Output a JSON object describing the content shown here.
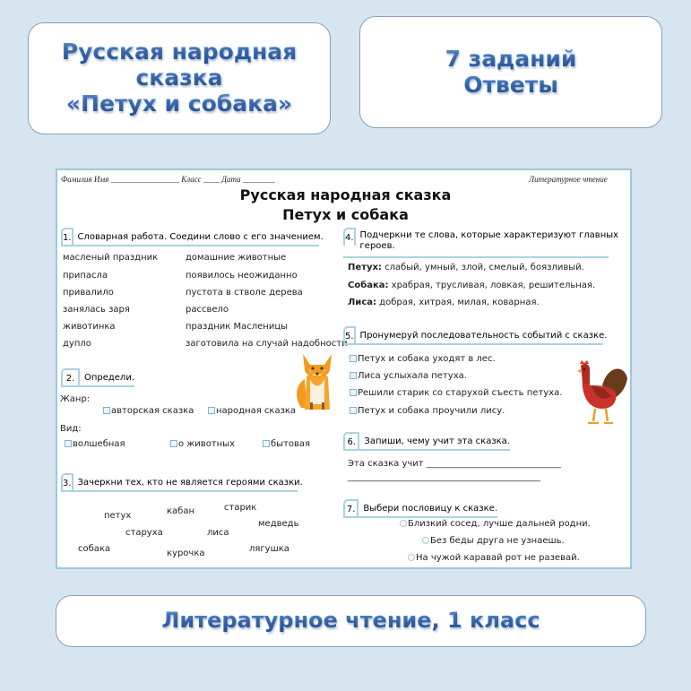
{
  "banner_title": [
    "Русская народная",
    "сказка",
    "«Петух и собака»"
  ],
  "banner_info": [
    "7 заданий",
    "Ответы"
  ],
  "footer": "Литературное чтение, 1 класс",
  "sheet": {
    "header_left": "Фамилия Имя _________________  Класс ____  Дата ________",
    "header_right": "Литературное чтение",
    "title": "Русская народная сказка",
    "subtitle": "Петух и собака",
    "task1": {
      "num": "1.",
      "text": "Словарная работа. Соедини слово с его значением.",
      "left": [
        "масленый праздник",
        "припасла",
        "привалило",
        "занялась заря",
        "животинка",
        "дупло"
      ],
      "right": [
        "домашние животные",
        "появилось неожиданно",
        "пустота в стволе дерева",
        "рассвело",
        "праздник Масленицы",
        "заготовила на случай надобности"
      ]
    },
    "task2": {
      "num": "2.",
      "text": "Определи.",
      "genre_label": "Жанр:",
      "genre": [
        "авторская сказка",
        "народная сказка"
      ],
      "kind_label": "Вид:",
      "kind": [
        "волшебная",
        "о животных",
        "бытовая"
      ]
    },
    "task3": {
      "num": "3.",
      "text": "Зачеркни тех, кто не является героями сказки.",
      "words": [
        "петух",
        "кабан",
        "старик",
        "медведь",
        "старуха",
        "лиса",
        "собака",
        "курочка",
        "лягушка"
      ]
    },
    "task4": {
      "num": "4.",
      "text": "Подчеркни те слова, которые характеризуют главных",
      "text2": "героев.",
      "lines": [
        {
          "who": "Петух:",
          "words": " слабый, умный, злой, смелый, боязливый."
        },
        {
          "who": "Собака:",
          "words": " храбрая,  трусливая, ловкая, решительная."
        },
        {
          "who": "Лиса:",
          "words": " добрая, хитрая, милая, коварная."
        }
      ]
    },
    "task5": {
      "num": "5.",
      "text": "Пронумеруй последовательность событий с сказке.",
      "events": [
        "Петух и собака уходят в лес.",
        "Лиса услыхала петуха.",
        "Решили старик со старухой съесть петуха.",
        "Петух и собака проучили лису."
      ]
    },
    "task6": {
      "num": "6.",
      "text": "Запиши, чему учит эта сказка.",
      "line1": "Эта сказка учит ______________________________",
      "line2": "___________________________________________"
    },
    "task7": {
      "num": "7.",
      "text": "Выбери  пословицу к сказке.",
      "options": [
        "Близкий сосед, лучше дальней родни.",
        "Без беды друга не узнаешь.",
        "На чужой каравай рот не разевай."
      ]
    }
  }
}
